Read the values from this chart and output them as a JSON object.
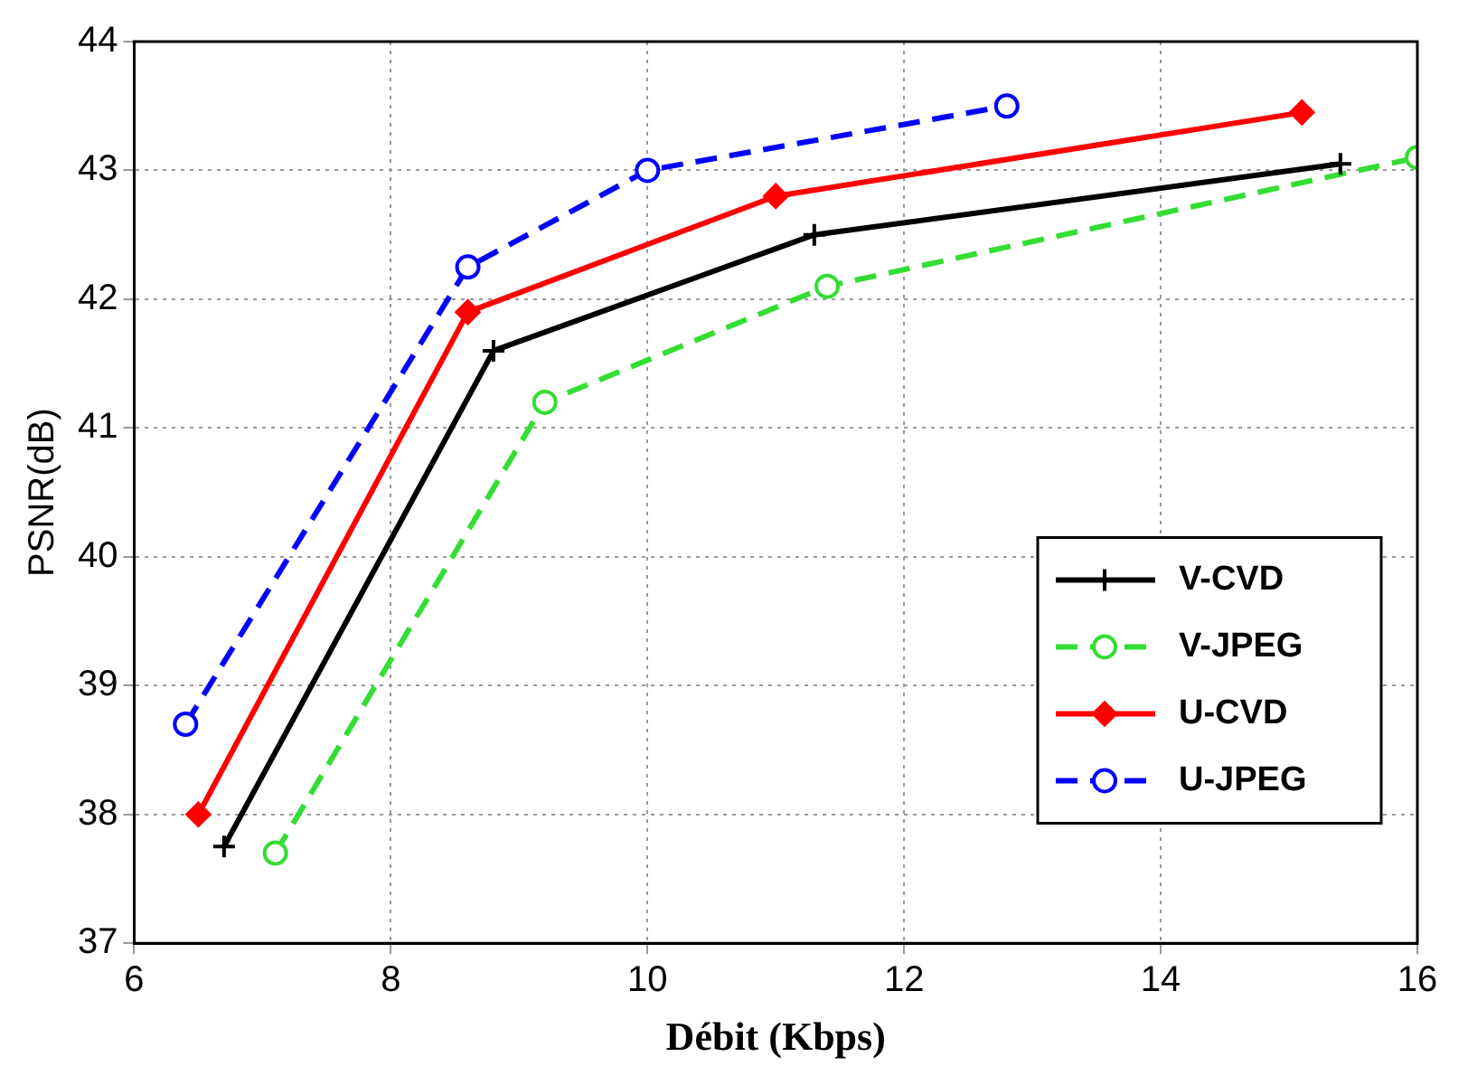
{
  "chart_data": {
    "type": "line",
    "xlabel": "Débit (Kbps)",
    "ylabel": "PSNR(dB)",
    "xlim": [
      6,
      16
    ],
    "xticks": [
      6,
      8,
      10,
      12,
      14,
      16
    ],
    "ylim": [
      37,
      44
    ],
    "yticks": [
      37,
      38,
      39,
      40,
      41,
      42,
      43,
      44
    ],
    "grid": true,
    "legend": "right",
    "series": [
      {
        "name": "V-CVD",
        "color": "#000000",
        "marker": "cross",
        "line_style": "solid",
        "x": [
          6.7,
          8.8,
          11.3,
          15.4
        ],
        "values": [
          37.75,
          41.6,
          42.5,
          43.05
        ]
      },
      {
        "name": "V-JPEG",
        "color": "#33dd33",
        "marker": "circle",
        "line_style": "dashed",
        "x": [
          7.1,
          9.2,
          11.4,
          16.0
        ],
        "values": [
          37.7,
          41.2,
          42.1,
          43.1
        ]
      },
      {
        "name": "U-CVD",
        "color": "#ff0000",
        "marker": "diamond",
        "line_style": "solid",
        "x": [
          6.5,
          8.6,
          11.0,
          15.1
        ],
        "values": [
          38.0,
          41.9,
          42.8,
          43.45
        ]
      },
      {
        "name": "U-JPEG",
        "color": "#0000ff",
        "marker": "circle",
        "line_style": "dashed",
        "x": [
          6.4,
          8.6,
          10.0,
          12.8
        ],
        "values": [
          38.7,
          42.25,
          43.0,
          43.5
        ]
      }
    ]
  }
}
